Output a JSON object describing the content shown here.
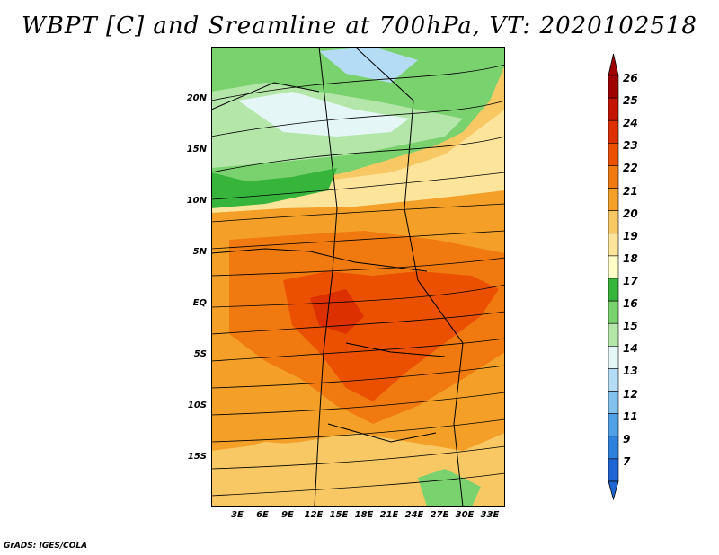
{
  "title": "WBPT [C] and Sreamline at 700hPa, VT: 2020102518",
  "credit": "GrADS: IGES/COLA",
  "lat_labels": [
    "20N",
    "15N",
    "10N",
    "5N",
    "EQ",
    "5S",
    "10S",
    "15S"
  ],
  "lon_labels": [
    "3E",
    "6E",
    "9E",
    "12E",
    "15E",
    "18E",
    "21E",
    "24E",
    "27E",
    "30E",
    "33E"
  ],
  "colorbar": {
    "labels": [
      "26",
      "25",
      "24",
      "23",
      "22",
      "21",
      "20",
      "19",
      "18",
      "17",
      "16",
      "15",
      "14",
      "13",
      "12",
      "11",
      "9",
      "7"
    ],
    "colors": [
      "#9e0000",
      "#c21400",
      "#dc3000",
      "#ea5000",
      "#f07a10",
      "#f4a028",
      "#f8c864",
      "#fce49a",
      "#ffffc8",
      "#37b43c",
      "#7ad26e",
      "#b4e6aa",
      "#e4f6f6",
      "#b4dcf5",
      "#82c0ee",
      "#50a0e6",
      "#2f82dc",
      "#1e64d2"
    ]
  }
}
